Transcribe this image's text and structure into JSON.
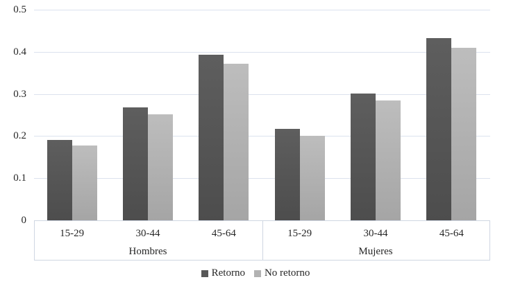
{
  "chart_data": {
    "type": "bar",
    "title": "",
    "y_axis": {
      "min": 0,
      "max": 0.5,
      "ticks": [
        0,
        0.1,
        0.2,
        0.3,
        0.4,
        0.5
      ],
      "tick_labels": [
        "0",
        "0.1",
        "0.2",
        "0.3",
        "0.4",
        "0.5"
      ],
      "grid": true
    },
    "x_axis": {
      "sections": [
        {
          "label": "Hombres",
          "categories": [
            "15-29",
            "30-44",
            "45-64"
          ]
        },
        {
          "label": "Mujeres",
          "categories": [
            "15-29",
            "30-44",
            "45-64"
          ]
        }
      ]
    },
    "categories": [
      "15-29",
      "30-44",
      "45-64",
      "15-29",
      "30-44",
      "45-64"
    ],
    "series": [
      {
        "name": "Retorno",
        "values": [
          0.19,
          0.268,
          0.393,
          0.217,
          0.301,
          0.432
        ],
        "color": "#575757",
        "gradient_top": "#5e5e5e",
        "gradient_bottom": "#4d4d4d"
      },
      {
        "name": "No retorno",
        "values": [
          0.177,
          0.251,
          0.372,
          0.201,
          0.284,
          0.41
        ],
        "color": "#b2b2b2",
        "gradient_top": "#bdbdbd",
        "gradient_bottom": "#a5a5a5"
      }
    ],
    "legend_position": "bottom",
    "colors": {
      "gridline": "#dbe2ee",
      "axis_line": "#cfd6e2",
      "text": "#262626",
      "background": "#ffffff"
    }
  }
}
